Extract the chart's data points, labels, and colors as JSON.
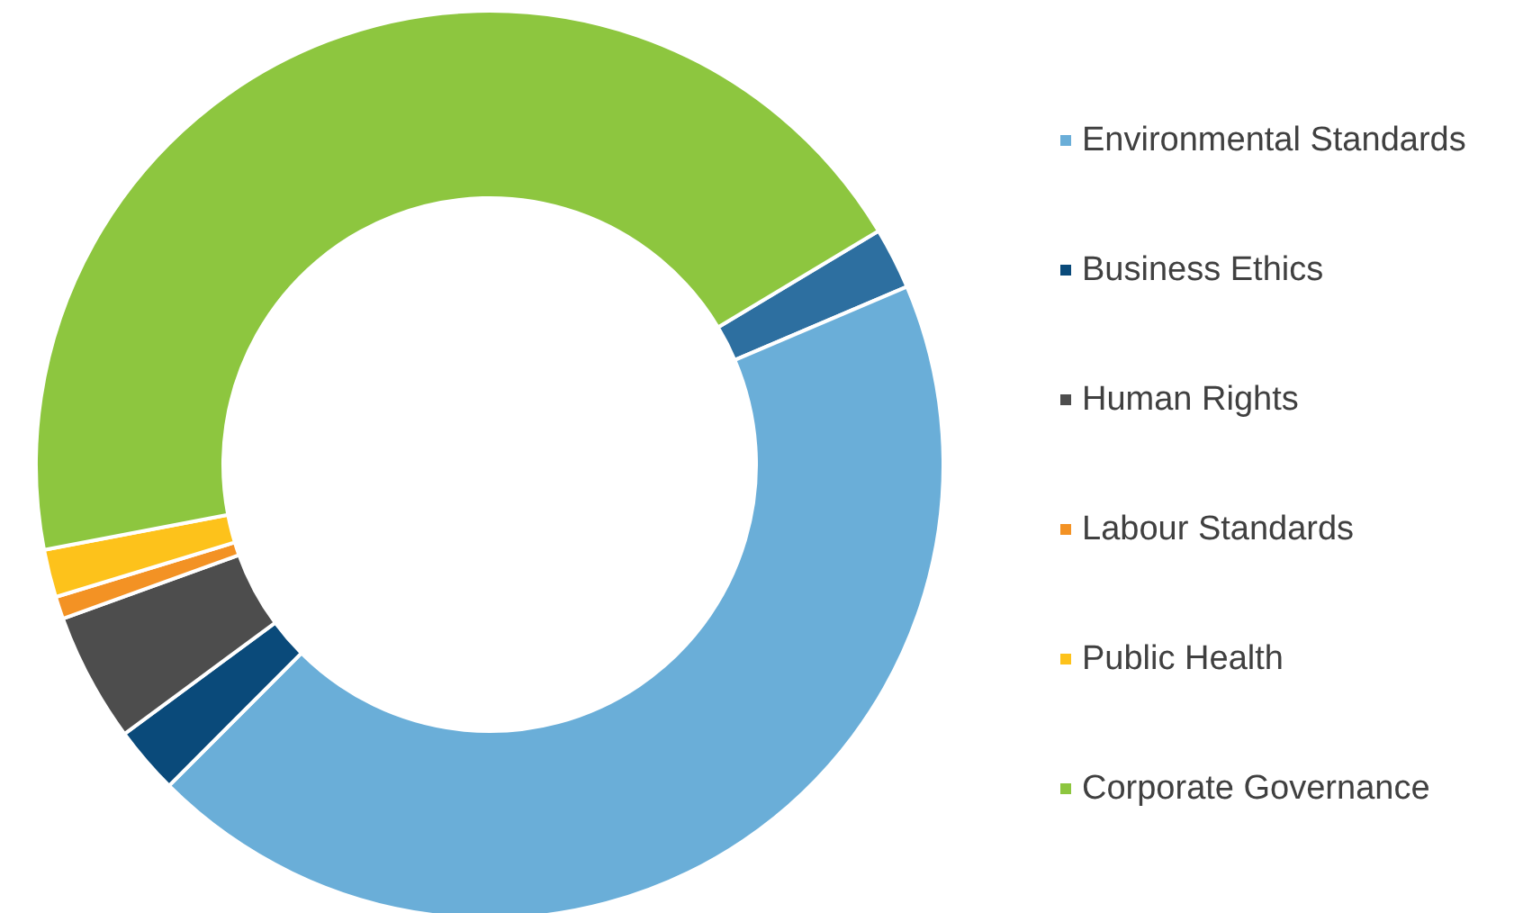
{
  "chart_data": {
    "type": "donut",
    "categories": [
      null,
      "Environmental Standards",
      "Business Ethics",
      "Human Rights",
      "Labour Standards",
      "Public Health",
      "Corporate Governance"
    ],
    "values": [
      2.2,
      43.9,
      2.4,
      4.6,
      0.8,
      1.7,
      44.4
    ],
    "colors": [
      "#2d6fa0",
      "#6aaed8",
      "#0a4a7a",
      "#4d4d4d",
      "#f39224",
      "#fdc21b",
      "#8dc63f"
    ],
    "legend": "right"
  }
}
